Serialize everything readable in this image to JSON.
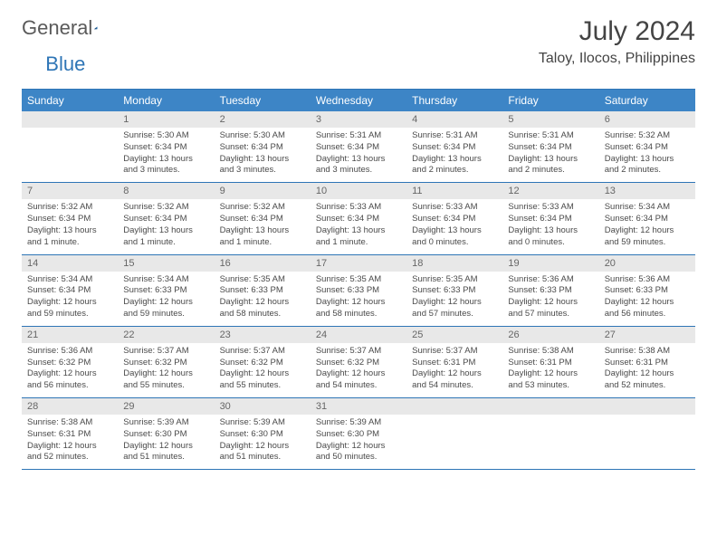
{
  "logo": {
    "text1": "General",
    "text2": "Blue"
  },
  "title": "July 2024",
  "subtitle": "Taloy, Ilocos, Philippines",
  "colors": {
    "header_bg": "#3d85c6",
    "header_text": "#ffffff",
    "border": "#2e75b6",
    "daynum_bg": "#e8e8e8",
    "body_text": "#4a4a4a",
    "logo_gray": "#5a5a5a",
    "logo_blue": "#2e75b6"
  },
  "weekdays": [
    "Sunday",
    "Monday",
    "Tuesday",
    "Wednesday",
    "Thursday",
    "Friday",
    "Saturday"
  ],
  "weeks": [
    [
      {
        "day": "",
        "sunrise": "",
        "sunset": "",
        "daylight": ""
      },
      {
        "day": "1",
        "sunrise": "Sunrise: 5:30 AM",
        "sunset": "Sunset: 6:34 PM",
        "daylight": "Daylight: 13 hours and 3 minutes."
      },
      {
        "day": "2",
        "sunrise": "Sunrise: 5:30 AM",
        "sunset": "Sunset: 6:34 PM",
        "daylight": "Daylight: 13 hours and 3 minutes."
      },
      {
        "day": "3",
        "sunrise": "Sunrise: 5:31 AM",
        "sunset": "Sunset: 6:34 PM",
        "daylight": "Daylight: 13 hours and 3 minutes."
      },
      {
        "day": "4",
        "sunrise": "Sunrise: 5:31 AM",
        "sunset": "Sunset: 6:34 PM",
        "daylight": "Daylight: 13 hours and 2 minutes."
      },
      {
        "day": "5",
        "sunrise": "Sunrise: 5:31 AM",
        "sunset": "Sunset: 6:34 PM",
        "daylight": "Daylight: 13 hours and 2 minutes."
      },
      {
        "day": "6",
        "sunrise": "Sunrise: 5:32 AM",
        "sunset": "Sunset: 6:34 PM",
        "daylight": "Daylight: 13 hours and 2 minutes."
      }
    ],
    [
      {
        "day": "7",
        "sunrise": "Sunrise: 5:32 AM",
        "sunset": "Sunset: 6:34 PM",
        "daylight": "Daylight: 13 hours and 1 minute."
      },
      {
        "day": "8",
        "sunrise": "Sunrise: 5:32 AM",
        "sunset": "Sunset: 6:34 PM",
        "daylight": "Daylight: 13 hours and 1 minute."
      },
      {
        "day": "9",
        "sunrise": "Sunrise: 5:32 AM",
        "sunset": "Sunset: 6:34 PM",
        "daylight": "Daylight: 13 hours and 1 minute."
      },
      {
        "day": "10",
        "sunrise": "Sunrise: 5:33 AM",
        "sunset": "Sunset: 6:34 PM",
        "daylight": "Daylight: 13 hours and 1 minute."
      },
      {
        "day": "11",
        "sunrise": "Sunrise: 5:33 AM",
        "sunset": "Sunset: 6:34 PM",
        "daylight": "Daylight: 13 hours and 0 minutes."
      },
      {
        "day": "12",
        "sunrise": "Sunrise: 5:33 AM",
        "sunset": "Sunset: 6:34 PM",
        "daylight": "Daylight: 13 hours and 0 minutes."
      },
      {
        "day": "13",
        "sunrise": "Sunrise: 5:34 AM",
        "sunset": "Sunset: 6:34 PM",
        "daylight": "Daylight: 12 hours and 59 minutes."
      }
    ],
    [
      {
        "day": "14",
        "sunrise": "Sunrise: 5:34 AM",
        "sunset": "Sunset: 6:34 PM",
        "daylight": "Daylight: 12 hours and 59 minutes."
      },
      {
        "day": "15",
        "sunrise": "Sunrise: 5:34 AM",
        "sunset": "Sunset: 6:33 PM",
        "daylight": "Daylight: 12 hours and 59 minutes."
      },
      {
        "day": "16",
        "sunrise": "Sunrise: 5:35 AM",
        "sunset": "Sunset: 6:33 PM",
        "daylight": "Daylight: 12 hours and 58 minutes."
      },
      {
        "day": "17",
        "sunrise": "Sunrise: 5:35 AM",
        "sunset": "Sunset: 6:33 PM",
        "daylight": "Daylight: 12 hours and 58 minutes."
      },
      {
        "day": "18",
        "sunrise": "Sunrise: 5:35 AM",
        "sunset": "Sunset: 6:33 PM",
        "daylight": "Daylight: 12 hours and 57 minutes."
      },
      {
        "day": "19",
        "sunrise": "Sunrise: 5:36 AM",
        "sunset": "Sunset: 6:33 PM",
        "daylight": "Daylight: 12 hours and 57 minutes."
      },
      {
        "day": "20",
        "sunrise": "Sunrise: 5:36 AM",
        "sunset": "Sunset: 6:33 PM",
        "daylight": "Daylight: 12 hours and 56 minutes."
      }
    ],
    [
      {
        "day": "21",
        "sunrise": "Sunrise: 5:36 AM",
        "sunset": "Sunset: 6:32 PM",
        "daylight": "Daylight: 12 hours and 56 minutes."
      },
      {
        "day": "22",
        "sunrise": "Sunrise: 5:37 AM",
        "sunset": "Sunset: 6:32 PM",
        "daylight": "Daylight: 12 hours and 55 minutes."
      },
      {
        "day": "23",
        "sunrise": "Sunrise: 5:37 AM",
        "sunset": "Sunset: 6:32 PM",
        "daylight": "Daylight: 12 hours and 55 minutes."
      },
      {
        "day": "24",
        "sunrise": "Sunrise: 5:37 AM",
        "sunset": "Sunset: 6:32 PM",
        "daylight": "Daylight: 12 hours and 54 minutes."
      },
      {
        "day": "25",
        "sunrise": "Sunrise: 5:37 AM",
        "sunset": "Sunset: 6:31 PM",
        "daylight": "Daylight: 12 hours and 54 minutes."
      },
      {
        "day": "26",
        "sunrise": "Sunrise: 5:38 AM",
        "sunset": "Sunset: 6:31 PM",
        "daylight": "Daylight: 12 hours and 53 minutes."
      },
      {
        "day": "27",
        "sunrise": "Sunrise: 5:38 AM",
        "sunset": "Sunset: 6:31 PM",
        "daylight": "Daylight: 12 hours and 52 minutes."
      }
    ],
    [
      {
        "day": "28",
        "sunrise": "Sunrise: 5:38 AM",
        "sunset": "Sunset: 6:31 PM",
        "daylight": "Daylight: 12 hours and 52 minutes."
      },
      {
        "day": "29",
        "sunrise": "Sunrise: 5:39 AM",
        "sunset": "Sunset: 6:30 PM",
        "daylight": "Daylight: 12 hours and 51 minutes."
      },
      {
        "day": "30",
        "sunrise": "Sunrise: 5:39 AM",
        "sunset": "Sunset: 6:30 PM",
        "daylight": "Daylight: 12 hours and 51 minutes."
      },
      {
        "day": "31",
        "sunrise": "Sunrise: 5:39 AM",
        "sunset": "Sunset: 6:30 PM",
        "daylight": "Daylight: 12 hours and 50 minutes."
      },
      {
        "day": "",
        "sunrise": "",
        "sunset": "",
        "daylight": ""
      },
      {
        "day": "",
        "sunrise": "",
        "sunset": "",
        "daylight": ""
      },
      {
        "day": "",
        "sunrise": "",
        "sunset": "",
        "daylight": ""
      }
    ]
  ]
}
